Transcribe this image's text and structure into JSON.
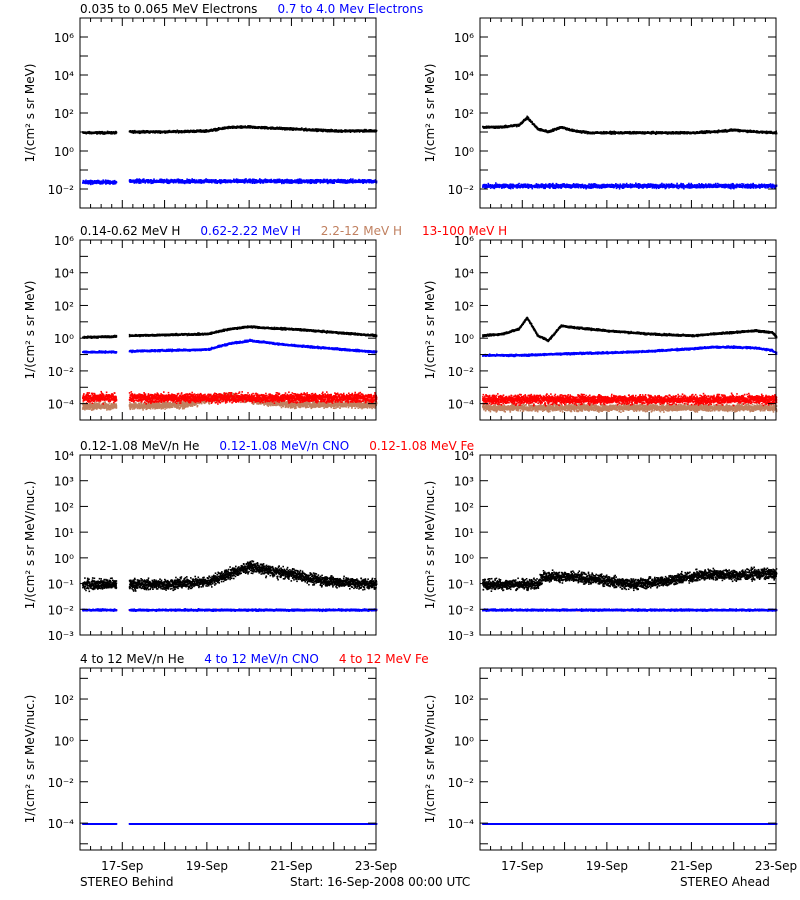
{
  "footer": {
    "left": "STEREO Behind",
    "center": "Start: 16-Sep-2008 00:00 UTC",
    "right": "STEREO Ahead"
  },
  "colors": {
    "black": "#000000",
    "blue": "#0000ff",
    "brown": "#c08060",
    "red": "#ff0000"
  },
  "x_ticks": [
    "17-Sep",
    "19-Sep",
    "21-Sep",
    "23-Sep"
  ],
  "chart_data": [
    {
      "type": "scatter",
      "ylabel": "1/(cm² s sr MeV)",
      "log_y": true,
      "ylim_exp": [
        -3,
        7
      ],
      "yticks": [
        {
          "e": -2,
          "t": "10⁻²"
        },
        {
          "e": 0,
          "t": "10⁰"
        },
        {
          "e": 2,
          "t": "10²"
        },
        {
          "e": 4,
          "t": "10⁴"
        },
        {
          "e": 6,
          "t": "10⁶"
        }
      ],
      "legend": [
        {
          "text": "0.035 to 0.065 MeV Electrons",
          "color": "#000000"
        },
        {
          "text": "0.7 to 4.0 Mev Electrons",
          "color": "#0000ff"
        }
      ],
      "panels": [
        {
          "spacecraft": "STEREO Behind",
          "series": [
            {
              "color": "#000000",
              "spread": 0.08,
              "x": [
                0.05,
                0.85,
                1.15,
                2,
                3,
                3.5,
                4,
                4.5,
                5,
                5.5,
                6,
                6.5,
                7
              ],
              "y": [
                1.0,
                1.0,
                1.05,
                1.05,
                1.1,
                1.28,
                1.3,
                1.25,
                1.2,
                1.15,
                1.1,
                1.1,
                1.1
              ]
            },
            {
              "color": "#0000ff",
              "spread": 0.14,
              "x": [
                0.05,
                0.85,
                1.15,
                7
              ],
              "y": [
                -1.6,
                -1.6,
                -1.55,
                -1.55
              ]
            }
          ]
        },
        {
          "spacecraft": "STEREO Ahead",
          "series": [
            {
              "color": "#000000",
              "spread": 0.08,
              "x": [
                0.05,
                0.5,
                0.9,
                1.1,
                1.35,
                1.6,
                1.9,
                2.2,
                2.6,
                3,
                4,
                5,
                5.5,
                6,
                6.5,
                7
              ],
              "y": [
                1.3,
                1.3,
                1.4,
                1.8,
                1.2,
                1.05,
                1.3,
                1.1,
                1.0,
                1.0,
                1.0,
                1.0,
                1.05,
                1.15,
                1.05,
                1.0
              ]
            },
            {
              "color": "#0000ff",
              "spread": 0.16,
              "x": [
                0.05,
                7
              ],
              "y": [
                -1.8,
                -1.8
              ]
            }
          ]
        }
      ]
    },
    {
      "type": "scatter",
      "ylabel": "1/(cm² s sr MeV)",
      "log_y": true,
      "ylim_exp": [
        -5,
        6
      ],
      "yticks": [
        {
          "e": -4,
          "t": "10⁻⁴"
        },
        {
          "e": -2,
          "t": "10⁻²"
        },
        {
          "e": 0,
          "t": "10⁰"
        },
        {
          "e": 2,
          "t": "10²"
        },
        {
          "e": 4,
          "t": "10⁴"
        },
        {
          "e": 6,
          "t": "10⁶"
        }
      ],
      "legend": [
        {
          "text": "0.14-0.62 MeV H",
          "color": "#000000"
        },
        {
          "text": "0.62-2.22 MeV H",
          "color": "#0000ff"
        },
        {
          "text": "2.2-12 MeV H",
          "color": "#c08060"
        },
        {
          "text": "13-100 MeV H",
          "color": "#ff0000"
        }
      ],
      "panels": [
        {
          "spacecraft": "STEREO Behind",
          "series": [
            {
              "color": "#c08060",
              "spread": 0.3,
              "x": [
                0.05,
                0.85,
                1.15,
                2.5,
                3,
                3.5,
                4,
                4.5,
                5,
                7
              ],
              "y": [
                -4.1,
                -4.1,
                -4.1,
                -4.0,
                -3.7,
                -3.5,
                -3.7,
                -3.9,
                -4.0,
                -4.0
              ]
            },
            {
              "color": "#ff0000",
              "spread": 0.4,
              "x": [
                0.05,
                0.85,
                1.15,
                7
              ],
              "y": [
                -3.6,
                -3.6,
                -3.6,
                -3.6
              ]
            },
            {
              "color": "#0000ff",
              "spread": 0.08,
              "x": [
                0.05,
                0.85,
                1.15,
                2,
                3,
                3.5,
                4,
                4.5,
                5,
                5.5,
                6,
                6.5,
                7
              ],
              "y": [
                -0.8,
                -0.8,
                -0.75,
                -0.7,
                -0.65,
                -0.3,
                -0.1,
                -0.25,
                -0.4,
                -0.5,
                -0.6,
                -0.7,
                -0.8
              ]
            },
            {
              "color": "#000000",
              "spread": 0.08,
              "x": [
                0.05,
                0.85,
                1.15,
                2,
                3,
                3.5,
                4,
                4.5,
                5,
                5.5,
                6,
                6.5,
                7
              ],
              "y": [
                0.1,
                0.15,
                0.2,
                0.25,
                0.3,
                0.6,
                0.75,
                0.65,
                0.6,
                0.5,
                0.4,
                0.3,
                0.2
              ]
            }
          ]
        },
        {
          "spacecraft": "STEREO Ahead",
          "series": [
            {
              "color": "#c08060",
              "spread": 0.3,
              "x": [
                0.05,
                7
              ],
              "y": [
                -4.2,
                -4.2
              ]
            },
            {
              "color": "#ff0000",
              "spread": 0.4,
              "x": [
                0.05,
                7
              ],
              "y": [
                -3.7,
                -3.7
              ]
            },
            {
              "color": "#0000ff",
              "spread": 0.08,
              "x": [
                0.05,
                1,
                2,
                3,
                4,
                5,
                5.5,
                6,
                6.5,
                6.9,
                7
              ],
              "y": [
                -1.0,
                -1.0,
                -0.9,
                -0.85,
                -0.75,
                -0.6,
                -0.5,
                -0.5,
                -0.55,
                -0.7,
                -0.9
              ]
            },
            {
              "color": "#000000",
              "spread": 0.08,
              "x": [
                0.05,
                0.5,
                0.9,
                1.1,
                1.35,
                1.6,
                1.9,
                2.2,
                2.6,
                3,
                4,
                5,
                5.5,
                6,
                6.5,
                6.9,
                7
              ],
              "y": [
                0.2,
                0.3,
                0.6,
                1.3,
                0.2,
                -0.1,
                0.8,
                0.7,
                0.6,
                0.5,
                0.3,
                0.2,
                0.3,
                0.4,
                0.5,
                0.4,
                0.1
              ]
            }
          ]
        }
      ]
    },
    {
      "type": "scatter",
      "ylabel": "1/(cm² s sr MeV/nuc.)",
      "log_y": true,
      "ylim_exp": [
        -3,
        4
      ],
      "yticks": [
        {
          "e": -3,
          "t": "10⁻³"
        },
        {
          "e": -2,
          "t": "10⁻²"
        },
        {
          "e": -1,
          "t": "10⁻¹"
        },
        {
          "e": 0,
          "t": "10⁰"
        },
        {
          "e": 1,
          "t": "10¹"
        },
        {
          "e": 2,
          "t": "10²"
        },
        {
          "e": 3,
          "t": "10³"
        },
        {
          "e": 4,
          "t": "10⁴"
        }
      ],
      "legend": [
        {
          "text": "0.12-1.08 MeV/n He",
          "color": "#000000"
        },
        {
          "text": "0.12-1.08 MeV/n CNO",
          "color": "#0000ff"
        },
        {
          "text": "0.12-1.08 MeV Fe",
          "color": "#ff0000"
        }
      ],
      "panels": [
        {
          "spacecraft": "STEREO Behind",
          "series": [
            {
              "color": "#ff0000",
              "spread": 0.02,
              "x": [
                0.05,
                7
              ],
              "y": [
                -2.0,
                -2.0
              ]
            },
            {
              "color": "#0000ff",
              "spread": 0.05,
              "x": [
                0.05,
                7
              ],
              "y": [
                -2.0,
                -2.0
              ]
            },
            {
              "color": "#000000",
              "spread": 0.3,
              "x": [
                0.05,
                0.85,
                1.15,
                2,
                3,
                3.5,
                4,
                4.5,
                5,
                5.5,
                6,
                7
              ],
              "y": [
                -1.0,
                -1.0,
                -1.0,
                -1.0,
                -0.9,
                -0.6,
                -0.3,
                -0.5,
                -0.6,
                -0.8,
                -0.9,
                -1.0
              ]
            }
          ]
        },
        {
          "spacecraft": "STEREO Ahead",
          "series": [
            {
              "color": "#ff0000",
              "spread": 0.02,
              "x": [
                0.05,
                7
              ],
              "y": [
                -2.0,
                -2.0
              ]
            },
            {
              "color": "#0000ff",
              "spread": 0.05,
              "x": [
                0.05,
                7
              ],
              "y": [
                -2.0,
                -2.0
              ]
            },
            {
              "color": "#000000",
              "spread": 0.3,
              "x": [
                0.05,
                1.3,
                1.5,
                2,
                3,
                3.5,
                4,
                5,
                5.5,
                6,
                6.5,
                7
              ],
              "y": [
                -1.0,
                -1.0,
                -0.7,
                -0.7,
                -0.85,
                -1.0,
                -0.95,
                -0.7,
                -0.6,
                -0.65,
                -0.6,
                -0.6
              ]
            }
          ]
        }
      ]
    },
    {
      "type": "scatter",
      "ylabel": "1/(cm² s sr MeV/nuc.)",
      "log_y": true,
      "ylim_exp": [
        -5.3,
        3.5
      ],
      "yticks": [
        {
          "e": -4,
          "t": "10⁻⁴"
        },
        {
          "e": -2,
          "t": "10⁻²"
        },
        {
          "e": 0,
          "t": "10⁰"
        },
        {
          "e": 2,
          "t": "10²"
        }
      ],
      "legend": [
        {
          "text": "4 to 12 MeV/n He",
          "color": "#000000"
        },
        {
          "text": "4 to 12 MeV/n CNO",
          "color": "#0000ff"
        },
        {
          "text": "4 to 12 MeV Fe",
          "color": "#ff0000"
        }
      ],
      "panels": [
        {
          "spacecraft": "STEREO Behind",
          "series": [
            {
              "color": "#0000ff",
              "spread": 0.0,
              "x": [
                0.05,
                0.85,
                1.15,
                7
              ],
              "y": [
                -4.0,
                -4.0,
                -4.0,
                -4.0
              ]
            }
          ]
        },
        {
          "spacecraft": "STEREO Ahead",
          "series": [
            {
              "color": "#0000ff",
              "spread": 0.0,
              "x": [
                0.05,
                7
              ],
              "y": [
                -4.0,
                -4.0
              ]
            }
          ]
        }
      ]
    }
  ]
}
